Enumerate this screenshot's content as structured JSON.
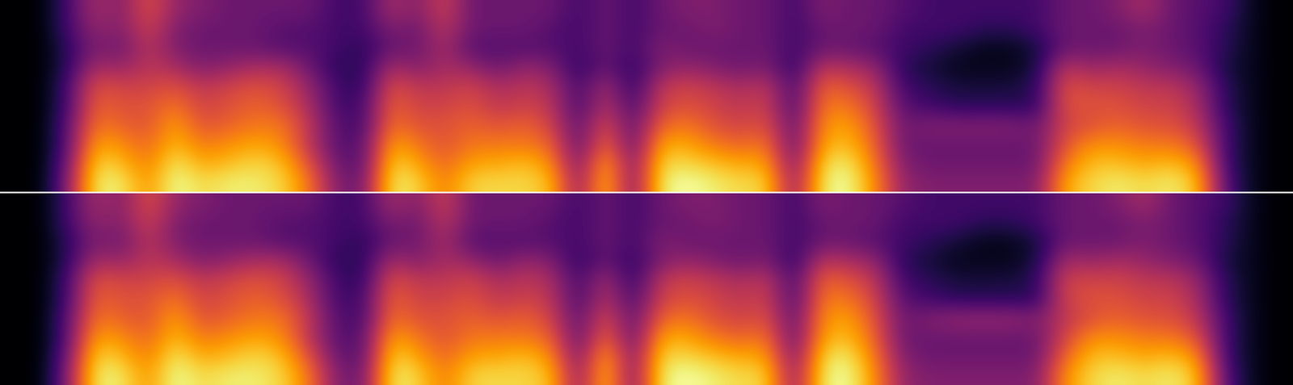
{
  "chart_data": [
    {
      "type": "heatmap",
      "color": "inferno",
      "tick_labels": false,
      "colorbar_range": [
        0,
        1
      ],
      "cells": [
        [
          0,
          0,
          0.2,
          0.45,
          0.35,
          0.6,
          0.4,
          0.35,
          0.3,
          0.3,
          0.3,
          0.3,
          0.2,
          0.2,
          0.45,
          0.35,
          0.55,
          0.3,
          0.3,
          0.3,
          0.3,
          0.2,
          0.3,
          0.2,
          0.3,
          0.35,
          0.35,
          0.3,
          0.3,
          0.2,
          0.35,
          0.3,
          0.3,
          0.25,
          0.2,
          0.2,
          0.2,
          0.2,
          0.2,
          0.3,
          0.3,
          0.35,
          0.45,
          0.3,
          0.25,
          0.2,
          0.05,
          0
        ],
        [
          0,
          0,
          0.2,
          0.4,
          0.35,
          0.55,
          0.35,
          0.3,
          0.3,
          0.3,
          0.25,
          0.25,
          0.2,
          0.2,
          0.35,
          0.3,
          0.5,
          0.3,
          0.3,
          0.3,
          0.25,
          0.2,
          0.3,
          0.2,
          0.3,
          0.3,
          0.35,
          0.3,
          0.3,
          0.2,
          0.3,
          0.3,
          0.3,
          0.2,
          0.2,
          0.2,
          0.15,
          0.15,
          0.2,
          0.3,
          0.3,
          0.3,
          0.35,
          0.3,
          0.25,
          0.15,
          0.05,
          0
        ],
        [
          0,
          0,
          0.15,
          0.35,
          0.3,
          0.5,
          0.35,
          0.3,
          0.3,
          0.3,
          0.25,
          0.25,
          0.2,
          0.15,
          0.3,
          0.3,
          0.45,
          0.25,
          0.25,
          0.25,
          0.25,
          0.2,
          0.3,
          0.2,
          0.35,
          0.3,
          0.3,
          0.3,
          0.3,
          0.2,
          0.3,
          0.3,
          0.25,
          0.2,
          0.15,
          0.1,
          0.05,
          0.05,
          0.1,
          0.3,
          0.3,
          0.3,
          0.35,
          0.3,
          0.25,
          0.15,
          0.05,
          0
        ],
        [
          0,
          0,
          0.15,
          0.45,
          0.4,
          0.5,
          0.45,
          0.35,
          0.4,
          0.45,
          0.45,
          0.3,
          0.15,
          0.15,
          0.45,
          0.35,
          0.45,
          0.4,
          0.3,
          0.4,
          0.35,
          0.15,
          0.3,
          0.15,
          0.35,
          0.4,
          0.35,
          0.3,
          0.35,
          0.15,
          0.5,
          0.45,
          0.4,
          0.15,
          0.1,
          0.05,
          0.05,
          0.05,
          0.1,
          0.5,
          0.4,
          0.45,
          0.4,
          0.35,
          0.3,
          0.1,
          0.05,
          0
        ],
        [
          0,
          0,
          0.2,
          0.6,
          0.55,
          0.55,
          0.6,
          0.5,
          0.55,
          0.6,
          0.55,
          0.4,
          0.2,
          0.15,
          0.6,
          0.5,
          0.5,
          0.55,
          0.45,
          0.5,
          0.45,
          0.2,
          0.45,
          0.15,
          0.5,
          0.55,
          0.5,
          0.45,
          0.5,
          0.2,
          0.65,
          0.6,
          0.5,
          0.2,
          0.15,
          0.1,
          0.1,
          0.1,
          0.15,
          0.6,
          0.55,
          0.55,
          0.5,
          0.5,
          0.4,
          0.15,
          0.05,
          0
        ],
        [
          0,
          0,
          0.2,
          0.65,
          0.6,
          0.6,
          0.7,
          0.55,
          0.6,
          0.65,
          0.6,
          0.45,
          0.2,
          0.2,
          0.65,
          0.55,
          0.55,
          0.6,
          0.5,
          0.55,
          0.5,
          0.2,
          0.5,
          0.2,
          0.55,
          0.6,
          0.55,
          0.5,
          0.55,
          0.2,
          0.7,
          0.7,
          0.55,
          0.25,
          0.2,
          0.15,
          0.15,
          0.15,
          0.15,
          0.6,
          0.6,
          0.6,
          0.55,
          0.55,
          0.45,
          0.15,
          0.05,
          0
        ],
        [
          0,
          0,
          0.25,
          0.7,
          0.65,
          0.6,
          0.8,
          0.6,
          0.65,
          0.7,
          0.7,
          0.5,
          0.25,
          0.2,
          0.7,
          0.6,
          0.6,
          0.65,
          0.6,
          0.65,
          0.55,
          0.25,
          0.6,
          0.25,
          0.65,
          0.7,
          0.6,
          0.55,
          0.6,
          0.25,
          0.75,
          0.8,
          0.6,
          0.3,
          0.35,
          0.35,
          0.35,
          0.35,
          0.3,
          0.55,
          0.6,
          0.65,
          0.6,
          0.6,
          0.5,
          0.2,
          0.05,
          0
        ],
        [
          0,
          0,
          0.25,
          0.8,
          0.75,
          0.65,
          0.85,
          0.7,
          0.75,
          0.8,
          0.75,
          0.5,
          0.25,
          0.25,
          0.8,
          0.7,
          0.6,
          0.7,
          0.7,
          0.7,
          0.65,
          0.25,
          0.7,
          0.25,
          0.8,
          0.8,
          0.7,
          0.65,
          0.7,
          0.25,
          0.8,
          0.85,
          0.65,
          0.3,
          0.3,
          0.3,
          0.3,
          0.3,
          0.3,
          0.6,
          0.75,
          0.75,
          0.7,
          0.7,
          0.6,
          0.2,
          0.05,
          0
        ],
        [
          0,
          0,
          0.3,
          0.9,
          0.85,
          0.7,
          0.95,
          0.8,
          0.85,
          0.9,
          0.85,
          0.6,
          0.3,
          0.25,
          0.9,
          0.8,
          0.65,
          0.8,
          0.8,
          0.85,
          0.75,
          0.3,
          0.85,
          0.3,
          0.9,
          0.9,
          0.85,
          0.8,
          0.8,
          0.3,
          0.9,
          0.95,
          0.7,
          0.35,
          0.3,
          0.3,
          0.3,
          0.3,
          0.3,
          0.7,
          0.85,
          0.85,
          0.8,
          0.85,
          0.75,
          0.2,
          0.05,
          0
        ],
        [
          0,
          0,
          0.35,
          0.95,
          0.95,
          0.75,
          1,
          0.9,
          0.95,
          0.95,
          0.9,
          0.7,
          0.35,
          0.3,
          0.95,
          0.9,
          0.7,
          0.9,
          0.9,
          0.9,
          0.85,
          0.35,
          0.9,
          0.3,
          0.95,
          1,
          0.95,
          0.9,
          0.9,
          0.35,
          0.95,
          1,
          0.75,
          0.4,
          0.35,
          0.35,
          0.35,
          0.35,
          0.35,
          0.8,
          0.9,
          0.95,
          0.9,
          0.95,
          0.85,
          0.25,
          0.05,
          0
        ]
      ]
    },
    {
      "type": "heatmap",
      "color": "inferno",
      "tick_labels": false,
      "colorbar_range": [
        0,
        1
      ],
      "cells": [
        [
          0,
          0,
          0.2,
          0.45,
          0.35,
          0.6,
          0.4,
          0.35,
          0.3,
          0.3,
          0.3,
          0.3,
          0.2,
          0.2,
          0.45,
          0.35,
          0.55,
          0.3,
          0.3,
          0.3,
          0.3,
          0.2,
          0.3,
          0.2,
          0.3,
          0.35,
          0.35,
          0.3,
          0.3,
          0.2,
          0.35,
          0.3,
          0.3,
          0.25,
          0.2,
          0.2,
          0.2,
          0.2,
          0.2,
          0.3,
          0.3,
          0.35,
          0.45,
          0.3,
          0.25,
          0.2,
          0.05,
          0
        ],
        [
          0,
          0,
          0.2,
          0.4,
          0.35,
          0.55,
          0.35,
          0.3,
          0.3,
          0.3,
          0.25,
          0.25,
          0.2,
          0.2,
          0.35,
          0.3,
          0.5,
          0.3,
          0.3,
          0.3,
          0.25,
          0.2,
          0.3,
          0.2,
          0.3,
          0.3,
          0.35,
          0.3,
          0.3,
          0.2,
          0.3,
          0.3,
          0.3,
          0.2,
          0.2,
          0.2,
          0.15,
          0.15,
          0.2,
          0.3,
          0.3,
          0.3,
          0.35,
          0.3,
          0.25,
          0.15,
          0.05,
          0
        ],
        [
          0,
          0,
          0.15,
          0.35,
          0.3,
          0.5,
          0.35,
          0.3,
          0.3,
          0.3,
          0.25,
          0.25,
          0.2,
          0.15,
          0.3,
          0.3,
          0.45,
          0.25,
          0.25,
          0.25,
          0.25,
          0.2,
          0.3,
          0.2,
          0.35,
          0.3,
          0.3,
          0.3,
          0.3,
          0.2,
          0.3,
          0.3,
          0.25,
          0.2,
          0.15,
          0.1,
          0.05,
          0.05,
          0.1,
          0.3,
          0.3,
          0.3,
          0.35,
          0.3,
          0.25,
          0.15,
          0.05,
          0
        ],
        [
          0,
          0,
          0.15,
          0.45,
          0.4,
          0.5,
          0.45,
          0.35,
          0.4,
          0.45,
          0.45,
          0.3,
          0.15,
          0.15,
          0.45,
          0.35,
          0.45,
          0.4,
          0.3,
          0.4,
          0.35,
          0.15,
          0.3,
          0.15,
          0.35,
          0.4,
          0.35,
          0.3,
          0.35,
          0.15,
          0.5,
          0.45,
          0.4,
          0.15,
          0.1,
          0.05,
          0.05,
          0.05,
          0.1,
          0.45,
          0.4,
          0.45,
          0.4,
          0.35,
          0.3,
          0.1,
          0.05,
          0
        ],
        [
          0,
          0,
          0.2,
          0.6,
          0.55,
          0.55,
          0.6,
          0.5,
          0.55,
          0.6,
          0.55,
          0.4,
          0.2,
          0.15,
          0.6,
          0.5,
          0.5,
          0.55,
          0.45,
          0.5,
          0.45,
          0.2,
          0.45,
          0.15,
          0.5,
          0.55,
          0.5,
          0.45,
          0.5,
          0.2,
          0.65,
          0.6,
          0.5,
          0.2,
          0.15,
          0.1,
          0.1,
          0.1,
          0.15,
          0.55,
          0.55,
          0.55,
          0.5,
          0.5,
          0.4,
          0.15,
          0.05,
          0
        ],
        [
          0,
          0,
          0.2,
          0.65,
          0.6,
          0.6,
          0.7,
          0.55,
          0.6,
          0.65,
          0.6,
          0.45,
          0.2,
          0.2,
          0.65,
          0.55,
          0.55,
          0.6,
          0.5,
          0.55,
          0.5,
          0.2,
          0.5,
          0.2,
          0.55,
          0.6,
          0.55,
          0.5,
          0.55,
          0.2,
          0.7,
          0.7,
          0.55,
          0.25,
          0.2,
          0.15,
          0.15,
          0.15,
          0.15,
          0.55,
          0.6,
          0.6,
          0.55,
          0.55,
          0.45,
          0.15,
          0.05,
          0
        ],
        [
          0,
          0,
          0.25,
          0.7,
          0.65,
          0.6,
          0.8,
          0.6,
          0.65,
          0.7,
          0.7,
          0.5,
          0.25,
          0.2,
          0.7,
          0.6,
          0.6,
          0.65,
          0.6,
          0.65,
          0.55,
          0.25,
          0.6,
          0.25,
          0.65,
          0.7,
          0.6,
          0.55,
          0.6,
          0.25,
          0.75,
          0.8,
          0.6,
          0.3,
          0.35,
          0.4,
          0.4,
          0.4,
          0.35,
          0.5,
          0.6,
          0.65,
          0.6,
          0.6,
          0.5,
          0.2,
          0.05,
          0
        ],
        [
          0,
          0,
          0.25,
          0.8,
          0.75,
          0.65,
          0.85,
          0.7,
          0.75,
          0.8,
          0.75,
          0.5,
          0.25,
          0.25,
          0.8,
          0.7,
          0.6,
          0.7,
          0.7,
          0.7,
          0.65,
          0.25,
          0.7,
          0.25,
          0.8,
          0.8,
          0.7,
          0.65,
          0.7,
          0.25,
          0.8,
          0.85,
          0.65,
          0.3,
          0.3,
          0.3,
          0.3,
          0.3,
          0.3,
          0.55,
          0.75,
          0.75,
          0.7,
          0.7,
          0.6,
          0.2,
          0.05,
          0
        ],
        [
          0,
          0,
          0.3,
          0.9,
          0.85,
          0.7,
          0.95,
          0.8,
          0.85,
          0.9,
          0.85,
          0.6,
          0.3,
          0.25,
          0.9,
          0.8,
          0.65,
          0.8,
          0.8,
          0.85,
          0.75,
          0.3,
          0.85,
          0.3,
          0.9,
          0.9,
          0.85,
          0.8,
          0.8,
          0.3,
          0.9,
          0.95,
          0.7,
          0.35,
          0.3,
          0.3,
          0.3,
          0.3,
          0.3,
          0.65,
          0.85,
          0.85,
          0.8,
          0.85,
          0.75,
          0.2,
          0.05,
          0
        ],
        [
          0,
          0,
          0.35,
          0.95,
          0.95,
          0.75,
          1,
          0.9,
          0.95,
          0.95,
          0.9,
          0.7,
          0.35,
          0.3,
          0.95,
          0.9,
          0.7,
          0.9,
          0.9,
          0.9,
          0.85,
          0.35,
          0.9,
          0.3,
          0.95,
          1,
          0.95,
          0.9,
          0.9,
          0.35,
          0.95,
          1,
          0.75,
          0.4,
          0.35,
          0.35,
          0.35,
          0.35,
          0.35,
          0.75,
          0.9,
          0.95,
          0.9,
          0.95,
          0.85,
          0.25,
          0.05,
          0
        ]
      ]
    }
  ]
}
